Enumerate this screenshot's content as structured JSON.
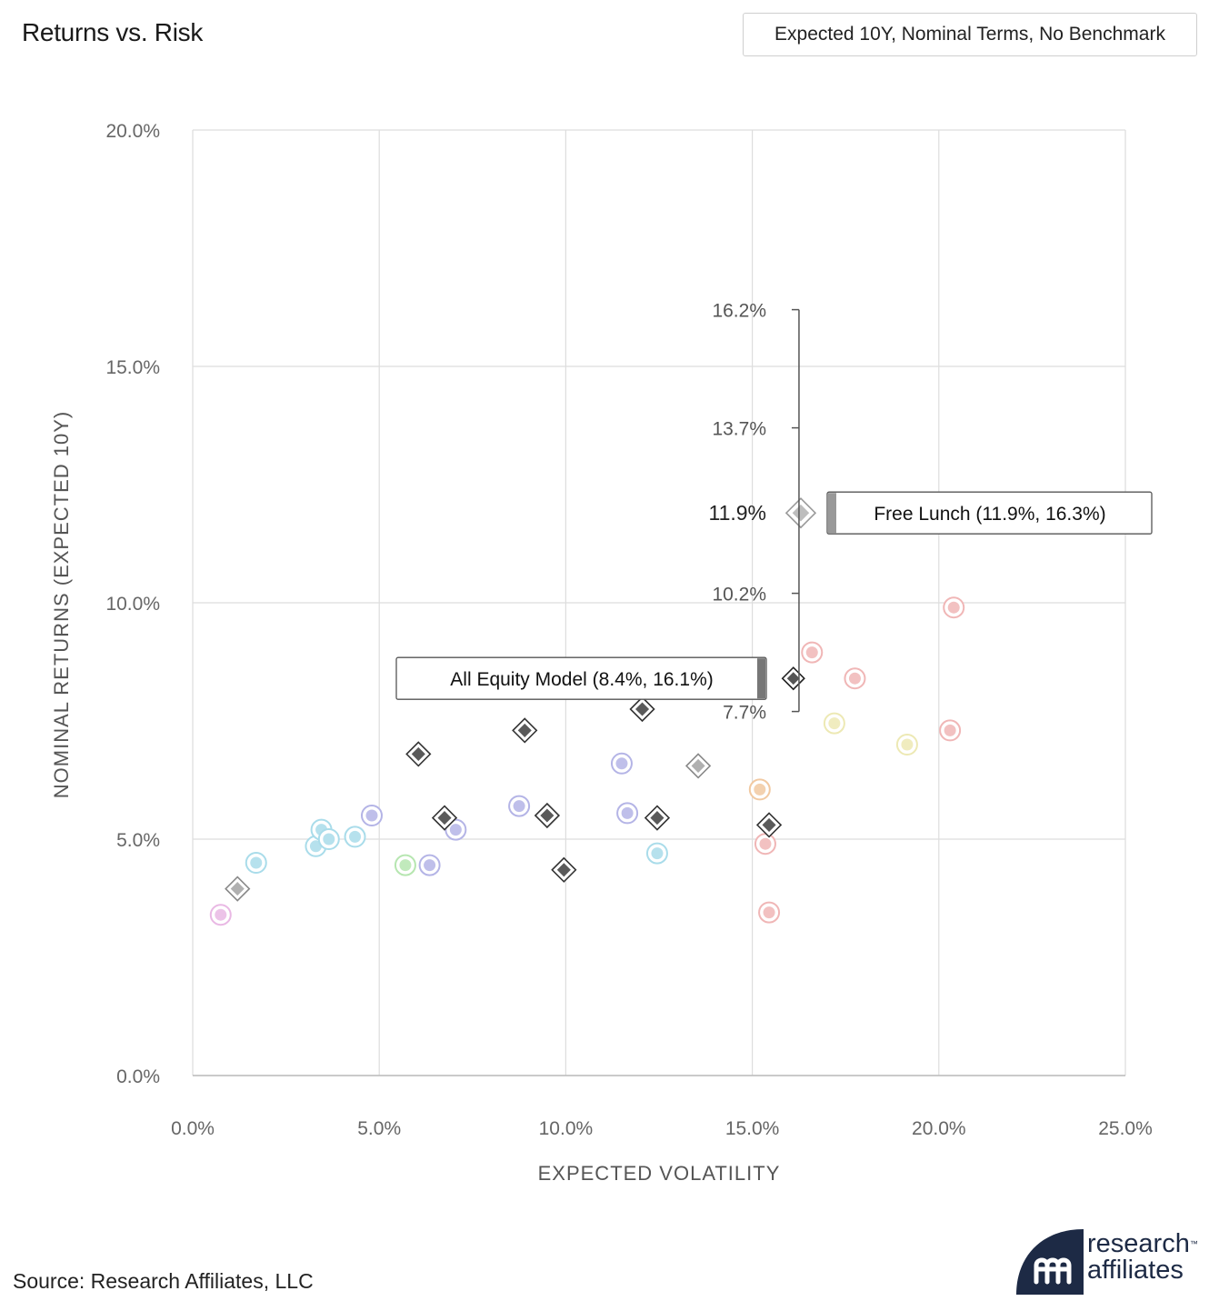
{
  "header": {
    "title": "Returns vs. Risk",
    "mode_label": "Expected 10Y, Nominal Terms, No Benchmark"
  },
  "footer": {
    "source": "Source: Research Affiliates, LLC",
    "logo_line1": "research",
    "logo_line2": "affiliates",
    "logo_tm": "™"
  },
  "colors": {
    "grid": "#dddddd",
    "diamond_dark": "#5a5a5a",
    "diamond_light": "#b0b0b0",
    "logo": "#1d2a45"
  },
  "chart_data": {
    "type": "scatter",
    "title": "Returns vs. Risk",
    "xlabel": "EXPECTED VOLATILITY",
    "ylabel": "NOMINAL RETURNS (EXPECTED 10Y)",
    "xlim": [
      0,
      25
    ],
    "ylim": [
      0,
      20
    ],
    "x_ticks": [
      "0.0%",
      "5.0%",
      "10.0%",
      "15.0%",
      "20.0%",
      "25.0%"
    ],
    "y_ticks": [
      "0.0%",
      "5.0%",
      "10.0%",
      "15.0%",
      "20.0%"
    ],
    "grid": true,
    "circles": [
      {
        "x": 0.75,
        "y": 3.4,
        "color": "#e9b8e4"
      },
      {
        "x": 1.7,
        "y": 4.5,
        "color": "#a9dcea"
      },
      {
        "x": 3.3,
        "y": 4.85,
        "color": "#a9dcea"
      },
      {
        "x": 3.45,
        "y": 5.2,
        "color": "#a9dcea"
      },
      {
        "x": 3.65,
        "y": 5.0,
        "color": "#a9dcea"
      },
      {
        "x": 4.35,
        "y": 5.05,
        "color": "#a9dcea"
      },
      {
        "x": 4.8,
        "y": 5.5,
        "color": "#b4b4e6"
      },
      {
        "x": 5.7,
        "y": 4.45,
        "color": "#b6e6b0"
      },
      {
        "x": 6.35,
        "y": 4.45,
        "color": "#b4b4e6"
      },
      {
        "x": 7.05,
        "y": 5.2,
        "color": "#b4b4e6"
      },
      {
        "x": 8.75,
        "y": 5.7,
        "color": "#b4b4e6"
      },
      {
        "x": 11.5,
        "y": 6.6,
        "color": "#b4b4e6"
      },
      {
        "x": 11.65,
        "y": 5.55,
        "color": "#b4b4e6"
      },
      {
        "x": 12.45,
        "y": 4.7,
        "color": "#a9dcea"
      },
      {
        "x": 15.2,
        "y": 6.05,
        "color": "#f1c9a1"
      },
      {
        "x": 15.35,
        "y": 4.9,
        "color": "#f0b6b6"
      },
      {
        "x": 15.45,
        "y": 3.45,
        "color": "#f0b6b6"
      },
      {
        "x": 16.6,
        "y": 8.95,
        "color": "#f0b6b6"
      },
      {
        "x": 17.2,
        "y": 7.45,
        "color": "#ede9b4"
      },
      {
        "x": 17.75,
        "y": 8.4,
        "color": "#f0b6b6"
      },
      {
        "x": 19.15,
        "y": 7.0,
        "color": "#ede9b4"
      },
      {
        "x": 20.3,
        "y": 7.3,
        "color": "#f0b6b6"
      },
      {
        "x": 20.4,
        "y": 9.9,
        "color": "#f0b6b6"
      }
    ],
    "diamonds": [
      {
        "x": 1.2,
        "y": 3.95,
        "shade": "light"
      },
      {
        "x": 6.05,
        "y": 6.8,
        "shade": "dark"
      },
      {
        "x": 6.75,
        "y": 5.45,
        "shade": "dark"
      },
      {
        "x": 8.9,
        "y": 7.3,
        "shade": "dark"
      },
      {
        "x": 9.5,
        "y": 5.5,
        "shade": "dark"
      },
      {
        "x": 9.95,
        "y": 4.35,
        "shade": "dark"
      },
      {
        "x": 12.05,
        "y": 7.75,
        "shade": "dark"
      },
      {
        "x": 12.45,
        "y": 5.45,
        "shade": "dark"
      },
      {
        "x": 13.55,
        "y": 6.55,
        "shade": "light"
      },
      {
        "x": 15.45,
        "y": 5.3,
        "shade": "dark"
      }
    ],
    "all_equity_model": {
      "x": 16.1,
      "y": 8.4,
      "label": "All Equity Model (8.4%, 16.1%)"
    },
    "free_lunch": {
      "x": 16.3,
      "y": 11.9,
      "label": "Free Lunch (11.9%, 16.3%)"
    },
    "range_bar": {
      "x": 16.3,
      "values": [
        16.2,
        13.7,
        11.9,
        10.2,
        7.7
      ],
      "labels": [
        "16.2%",
        "13.7%",
        "11.9%",
        "10.2%",
        "7.7%"
      ],
      "main_index": 2
    }
  }
}
